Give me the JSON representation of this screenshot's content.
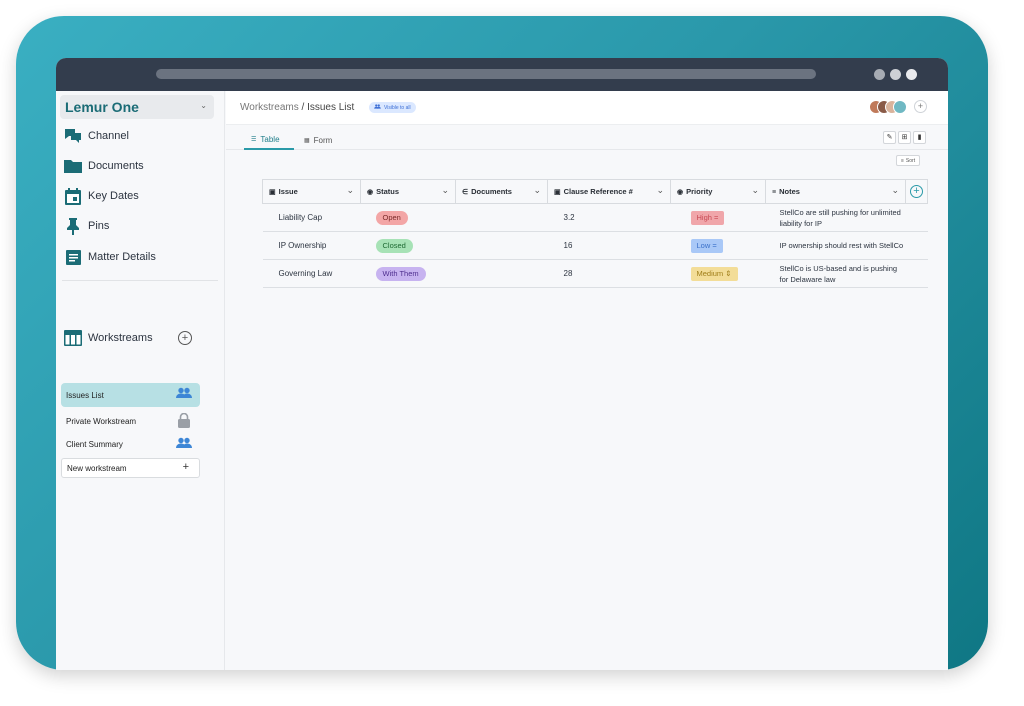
{
  "workspace": {
    "name": "Lemur One"
  },
  "nav": [
    {
      "label": "Channel",
      "icon": "chat-icon"
    },
    {
      "label": "Documents",
      "icon": "folder-icon"
    },
    {
      "label": "Key Dates",
      "icon": "calendar-icon"
    },
    {
      "label": "Pins",
      "icon": "pin-icon"
    },
    {
      "label": "Matter Details",
      "icon": "details-icon"
    }
  ],
  "workstreams": {
    "title": "Workstreams",
    "items": [
      {
        "label": "Issues List",
        "icon": "people-icon"
      },
      {
        "label": "Private Workstream",
        "icon": "lock-icon"
      },
      {
        "label": "Client Summary",
        "icon": "people-icon"
      }
    ],
    "new_label": "New workstream"
  },
  "breadcrumb": {
    "parent": "Workstreams",
    "separator": " / ",
    "current": "Issues List"
  },
  "visibility_badge": "Visible to all",
  "tabs": [
    {
      "label": "Table"
    },
    {
      "label": "Form"
    }
  ],
  "sort_label": "Sort",
  "columns": [
    {
      "label": "Issue"
    },
    {
      "label": "Status"
    },
    {
      "label": "Documents"
    },
    {
      "label": "Clause Reference #"
    },
    {
      "label": "Priority"
    },
    {
      "label": "Notes"
    }
  ],
  "rows": [
    {
      "issue": "Liability Cap",
      "status": "Open",
      "documents": "",
      "clause": "3.2",
      "priority": "High",
      "notes": "StellCo are still pushing for unlimited liability for IP"
    },
    {
      "issue": "IP Ownership",
      "status": "Closed",
      "documents": "",
      "clause": "16",
      "priority": "Low",
      "notes": "IP ownership should rest with StellCo"
    },
    {
      "issue": "Governing Law",
      "status": "With Them",
      "documents": "",
      "clause": "28",
      "priority": "Medium",
      "notes": "StellCo is US-based and is pushing for Delaware law"
    }
  ],
  "colors": {
    "brand": "#1b6c76",
    "frame": "#2a98aa",
    "status_open": "#f3a6a6",
    "status_closed": "#a7e2b6",
    "status_with_them": "#c7b3f0",
    "priority_high": "#f0a6aa",
    "priority_low": "#a9c8f7",
    "priority_medium": "#f3dd98"
  }
}
